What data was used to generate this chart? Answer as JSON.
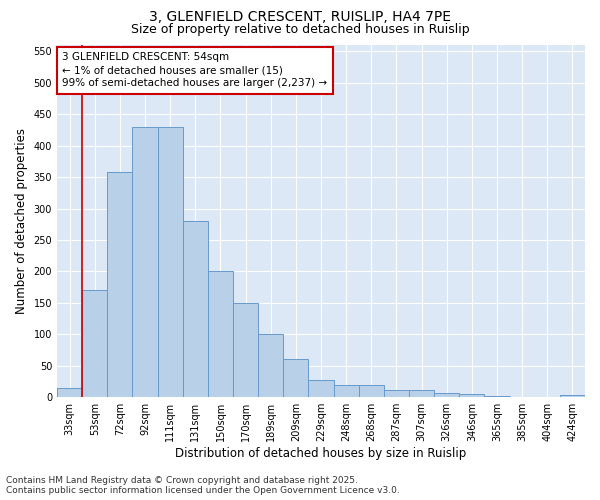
{
  "title": "3, GLENFIELD CRESCENT, RUISLIP, HA4 7PE",
  "subtitle": "Size of property relative to detached houses in Ruislip",
  "xlabel": "Distribution of detached houses by size in Ruislip",
  "ylabel": "Number of detached properties",
  "categories": [
    "33sqm",
    "53sqm",
    "72sqm",
    "92sqm",
    "111sqm",
    "131sqm",
    "150sqm",
    "170sqm",
    "189sqm",
    "209sqm",
    "229sqm",
    "248sqm",
    "268sqm",
    "287sqm",
    "307sqm",
    "326sqm",
    "346sqm",
    "365sqm",
    "385sqm",
    "404sqm",
    "424sqm"
  ],
  "values": [
    15,
    170,
    358,
    430,
    430,
    280,
    200,
    150,
    100,
    60,
    28,
    20,
    20,
    12,
    12,
    7,
    5,
    2,
    1,
    1,
    3
  ],
  "bar_color": "#b8d0e8",
  "bar_edge_color": "#6699cc",
  "plot_bg_color": "#dce8f5",
  "fig_bg_color": "#ffffff",
  "grid_color": "#ffffff",
  "vline_color": "#cc0000",
  "vline_x_index": 1,
  "annotation_line1": "3 GLENFIELD CRESCENT: 54sqm",
  "annotation_line2": "← 1% of detached houses are smaller (15)",
  "annotation_line3": "99% of semi-detached houses are larger (2,237) →",
  "annotation_box_color": "#cc0000",
  "ylim": [
    0,
    560
  ],
  "yticks": [
    0,
    50,
    100,
    150,
    200,
    250,
    300,
    350,
    400,
    450,
    500,
    550
  ],
  "footer": "Contains HM Land Registry data © Crown copyright and database right 2025.\nContains public sector information licensed under the Open Government Licence v3.0.",
  "title_fontsize": 10,
  "subtitle_fontsize": 9,
  "axis_label_fontsize": 8.5,
  "tick_fontsize": 7,
  "annotation_fontsize": 7.5,
  "footer_fontsize": 6.5
}
